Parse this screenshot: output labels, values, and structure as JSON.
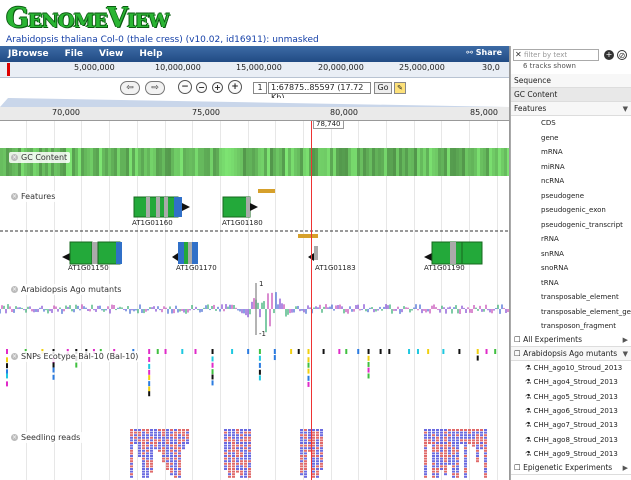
{
  "app": {
    "logo": "GenomeView",
    "subtitle": "Arabidopsis thaliana Col-0 (thale cress) (v10.02, id16911): unmasked"
  },
  "menubar": {
    "brand": "JBrowse",
    "items": [
      "File",
      "View",
      "Help"
    ],
    "share": "Share"
  },
  "overview": {
    "ticks": [
      "5,000,000",
      "10,000,000",
      "15,000,000",
      "20,000,000",
      "25,000,000",
      "30,0"
    ]
  },
  "nav": {
    "ref_value": "1",
    "location": "1:67875..85597 (17.72 Kb)",
    "go_label": "Go"
  },
  "ruler": {
    "ticks": [
      "70,000",
      "75,000",
      "80,000",
      "85,000"
    ],
    "cursor_label": "78,740"
  },
  "tracks": {
    "gc_content": "GC Content",
    "features": "Features",
    "ago_mutants": "Arabidopsis Ago mutants",
    "snps": "SNPs Ecotype Bal-10 (Bal-10)",
    "seedling_reads": "Seedling reads",
    "ago_axis_top": "1",
    "ago_axis_bottom": "-1"
  },
  "features": {
    "genes": [
      "AT1G01160",
      "AT1G01180",
      "AT1G01150",
      "AT1G01170",
      "AT1G01183",
      "AT1G01190"
    ]
  },
  "sidebar": {
    "filter_placeholder": "filter by text",
    "track_count": "6 tracks shown",
    "categories": [
      "Sequence",
      "GC Content",
      "Features"
    ],
    "feature_items": [
      "CDS",
      "gene",
      "mRNA",
      "miRNA",
      "ncRNA",
      "pseudogene",
      "pseudogenic_exon",
      "pseudogenic_transcript",
      "rRNA",
      "snRNA",
      "snoRNA",
      "tRNA",
      "transposable_element",
      "transposable_element_gene",
      "transposon_fragment"
    ],
    "all_experiments": "All Experiments",
    "ago_group": "Arabidopsis Ago mutants",
    "ago_items": [
      "CHH_ago10_Stroud_2013",
      "CHH_ago4_Stroud_2013",
      "CHH_ago5_Stroud_2013",
      "CHH_ago6_Stroud_2013",
      "CHH_ago7_Stroud_2013",
      "CHH_ago8_Stroud_2013",
      "CHH_ago9_Stroud_2013"
    ],
    "epigenetic": "Epigenetic Experiments"
  },
  "colors": {
    "accent": "#214b84",
    "logo": "#2ab533",
    "gene_green": "#23a93a",
    "cursor": "#e33"
  }
}
